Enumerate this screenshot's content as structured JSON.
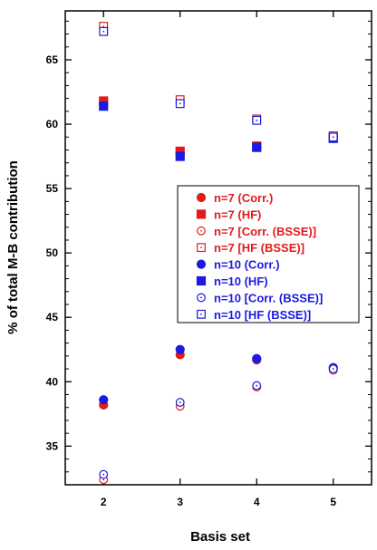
{
  "chart_data": {
    "type": "scatter",
    "xlabel": "Basis set",
    "ylabel": "% of total M-B contribution",
    "x_ticks": [
      "2",
      "3",
      "4",
      "5"
    ],
    "y_ticks": [
      "35",
      "40",
      "45",
      "50",
      "55",
      "60",
      "65"
    ],
    "xlim": [
      1.5,
      5.5
    ],
    "ylim": [
      32.0,
      68.8
    ],
    "grid": false,
    "legend_position": "right-center",
    "colors": {
      "n7": "#e31b1b",
      "n10": "#1a1ae0"
    },
    "series": [
      {
        "name": "n=7 (Corr.)",
        "marker": "circle-filled",
        "color": "#e31b1b",
        "x": [
          2,
          3,
          4,
          5
        ],
        "y": [
          38.2,
          42.1,
          41.7,
          41.0
        ]
      },
      {
        "name": "n=7 (HF)",
        "marker": "square-filled",
        "color": "#e31b1b",
        "x": [
          2,
          3,
          4,
          5
        ],
        "y": [
          61.8,
          57.9,
          58.3,
          59.0
        ]
      },
      {
        "name": "n=7 [Corr. (BSSE)]",
        "marker": "circle-open",
        "color": "#e31b1b",
        "x": [
          2,
          3,
          4,
          5
        ],
        "y": [
          32.4,
          38.1,
          39.6,
          40.9
        ]
      },
      {
        "name": "n=7 [HF (BSSE)]",
        "marker": "square-open",
        "color": "#e31b1b",
        "x": [
          2,
          3,
          4,
          5
        ],
        "y": [
          67.6,
          61.9,
          60.4,
          59.1
        ]
      },
      {
        "name": "n=10 (Corr.)",
        "marker": "circle-filled",
        "color": "#1a1ae0",
        "x": [
          2,
          3,
          4,
          5
        ],
        "y": [
          38.6,
          42.5,
          41.8,
          41.1
        ]
      },
      {
        "name": "n=10 (HF)",
        "marker": "square-filled",
        "color": "#1a1ae0",
        "x": [
          2,
          3,
          4,
          5
        ],
        "y": [
          61.4,
          57.5,
          58.2,
          58.9
        ]
      },
      {
        "name": "n=10 [Corr. (BSSE)]",
        "marker": "circle-open",
        "color": "#1a1ae0",
        "x": [
          2,
          3,
          4,
          5
        ],
        "y": [
          32.8,
          38.4,
          39.7,
          41.0
        ]
      },
      {
        "name": "n=10 [HF (BSSE)]",
        "marker": "square-open",
        "color": "#1a1ae0",
        "x": [
          2,
          3,
          4,
          5
        ],
        "y": [
          67.2,
          61.6,
          60.3,
          59.0
        ]
      }
    ]
  }
}
